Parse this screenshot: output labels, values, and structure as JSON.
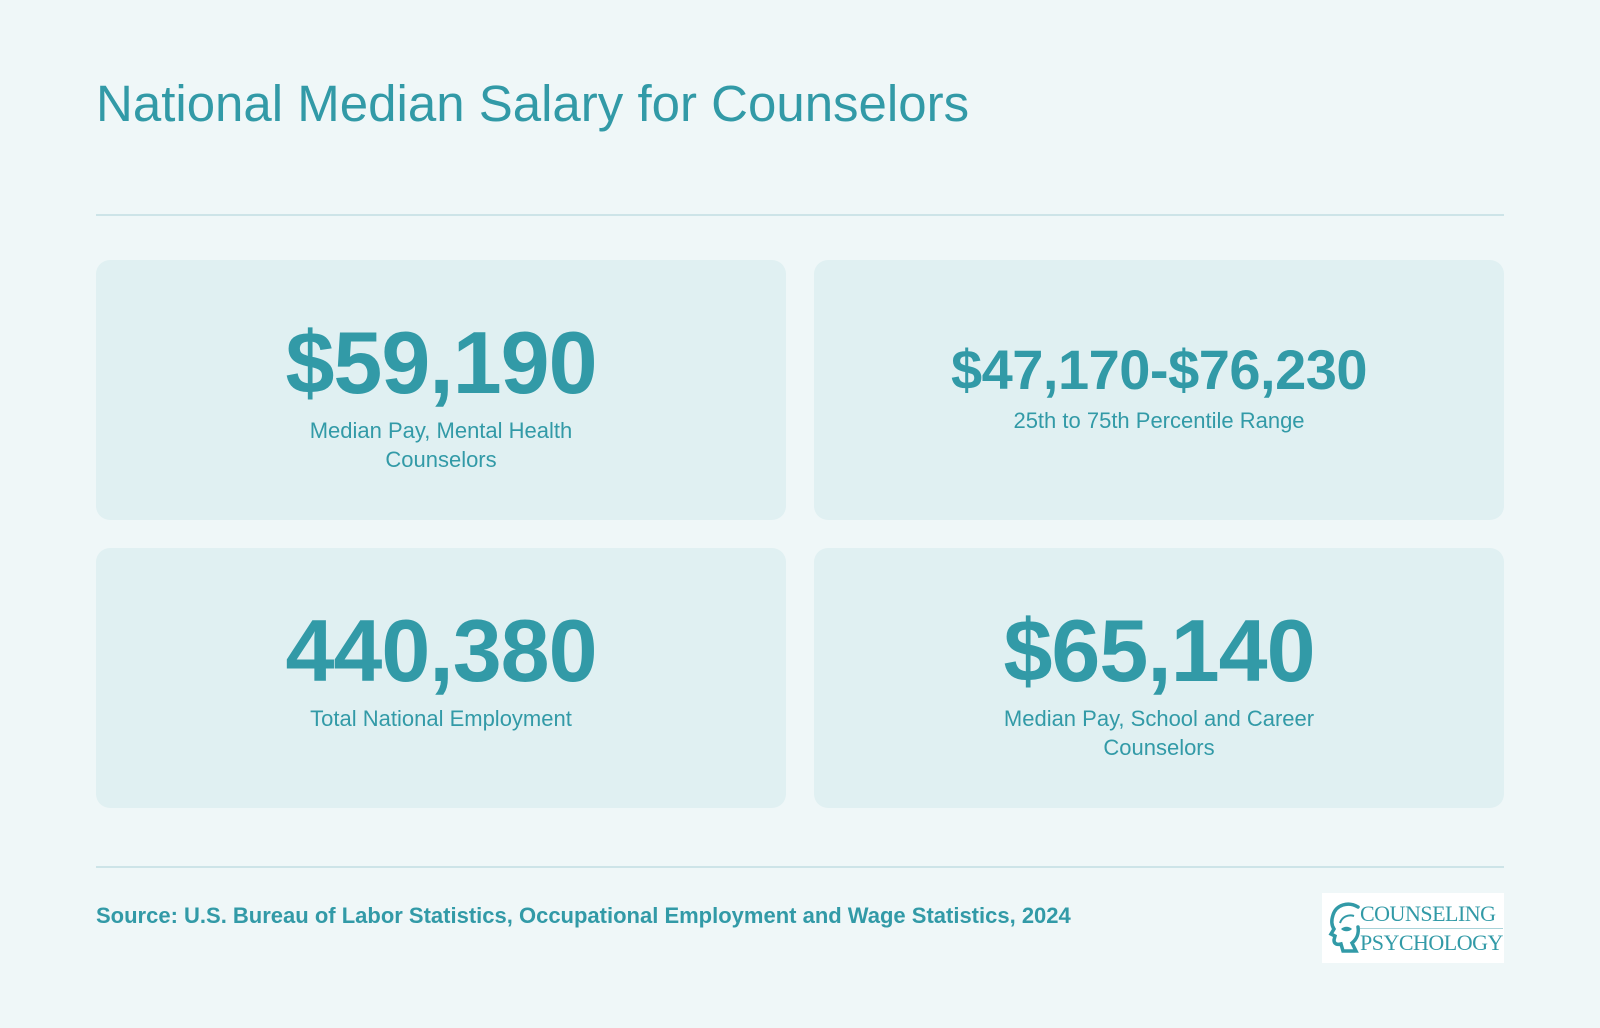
{
  "header": {
    "title": "National Median Salary for Counselors"
  },
  "stats": [
    {
      "value": "$59,190",
      "caption": "Median Pay, Mental Health Counselors"
    },
    {
      "value": "$47,170-$76,230",
      "caption": "25th to 75th Percentile Range"
    },
    {
      "value": "440,380",
      "caption": "Total National Employment"
    },
    {
      "value": "$65,140",
      "caption": "Median Pay, School and Career Counselors"
    }
  ],
  "footer": {
    "source": "Source: U.S. Bureau of Labor Statistics, Occupational Employment and Wage Statistics, 2024",
    "logo": {
      "line1": "COUNSELING",
      "line2": "PSYCHOLOGY",
      "icon": "head-silhouette-icon"
    }
  },
  "colors": {
    "background": "#eff7f8",
    "card": "#e0f0f2",
    "accent": "#329aa7",
    "rule": "#cde4e8"
  }
}
